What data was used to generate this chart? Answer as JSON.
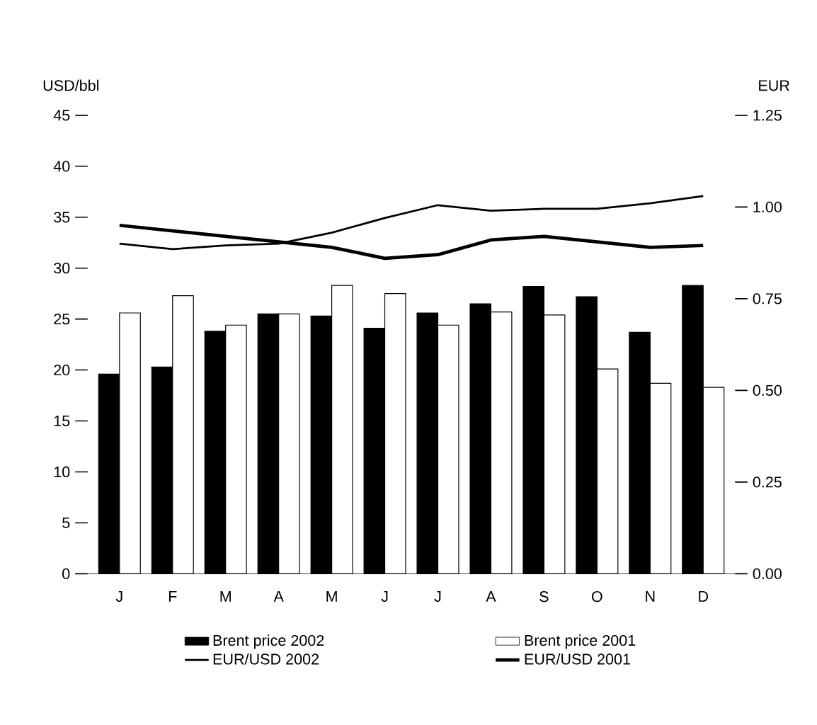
{
  "chart_data": {
    "type": "bar",
    "ylabel": "USD/bbl",
    "y2label": "EUR",
    "categories": [
      "J",
      "F",
      "M",
      "A",
      "M",
      "J",
      "J",
      "A",
      "S",
      "O",
      "N",
      "D"
    ],
    "series": [
      {
        "name": "Brent price 2002",
        "color": "#000000",
        "values": [
          19.6,
          20.3,
          23.8,
          25.5,
          25.3,
          24.1,
          25.6,
          26.5,
          28.2,
          27.2,
          23.7,
          28.3
        ]
      },
      {
        "name": "Brent price 2001",
        "color": "#ffffff",
        "values": [
          25.6,
          27.3,
          24.4,
          25.5,
          28.3,
          27.5,
          24.4,
          25.7,
          25.4,
          20.1,
          18.7,
          18.3
        ]
      },
      {
        "name": "EUR/USD 2002",
        "type": "line",
        "axis": "y2",
        "color": "#000000",
        "values": [
          0.9,
          0.885,
          0.895,
          0.9,
          0.93,
          0.97,
          1.005,
          0.99,
          0.995,
          0.995,
          1.01,
          1.03
        ]
      },
      {
        "name": "EUR/USD 2001",
        "type": "line",
        "axis": "y2",
        "color": "#000000",
        "values": [
          0.95,
          0.935,
          0.92,
          0.905,
          0.89,
          0.86,
          0.87,
          0.91,
          0.92,
          0.905,
          0.89,
          0.895
        ]
      }
    ],
    "ylim": [
      0,
      45
    ],
    "yticks": [
      0,
      5,
      10,
      15,
      20,
      25,
      30,
      35,
      40,
      45
    ],
    "y2lim": [
      0,
      1.25
    ],
    "y2ticks": [
      {
        "value": 0,
        "label": "0.00"
      },
      0.25,
      {
        "value": 0.5,
        "label": "0.50"
      },
      0.75,
      {
        "value": 1,
        "label": "1.00"
      },
      1.25
    ],
    "legend": "bottom",
    "grid": false
  }
}
